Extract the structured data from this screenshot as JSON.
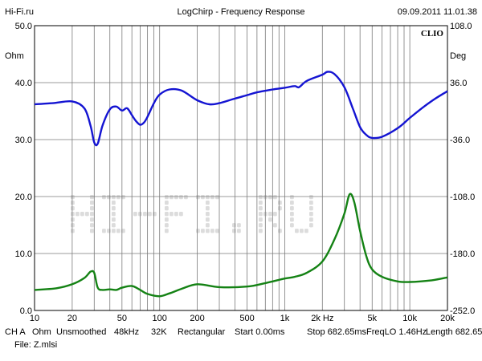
{
  "header": {
    "site": "Hi-Fi.ru",
    "title": "LogChirp - Frequency Response",
    "datetime": "09.09.2011 11.01.38"
  },
  "brand": "CLIO",
  "watermark": "HI-FI.RU",
  "footer": {
    "line1": [
      "CH A",
      "Ohm",
      "Unsmoothed",
      "48kHz",
      "32K",
      "Rectangular",
      "Start 0.00ms",
      "Stop 682.65ms",
      "FreqLO 1.46Hz",
      "Length 682.65ms"
    ],
    "line2": "File: Z.mlsi"
  },
  "chart_data": {
    "type": "line",
    "x_scale": "log",
    "xlim": [
      10,
      20000
    ],
    "x_ticks": [
      10,
      20,
      50,
      100,
      200,
      500,
      1000,
      2000,
      5000,
      10000,
      20000
    ],
    "x_tick_labels": [
      "10",
      "20",
      "50",
      "100",
      "200",
      "500",
      "1k",
      "2k Hz",
      "5k",
      "10k",
      "20k"
    ],
    "left_axis": {
      "unit": "Ohm",
      "ylim": [
        0,
        50
      ],
      "ticks": [
        0,
        10,
        20,
        30,
        40,
        50
      ],
      "tick_labels": [
        "0.0",
        "10.0",
        "20.0",
        "30.0",
        "40.0",
        "50.0"
      ]
    },
    "right_axis": {
      "unit": "Deg",
      "ylim": [
        -252,
        108
      ],
      "ticks": [
        -252,
        -180,
        -108,
        -36,
        36,
        108
      ],
      "tick_labels": [
        "-252.0",
        "-180.0",
        "-108.0",
        "-36.0",
        "36.0",
        "108.0"
      ]
    },
    "grid": true,
    "series": [
      {
        "axis": "left",
        "color": "#1414d2",
        "x": [
          10,
          14,
          20,
          25,
          28,
          30,
          32,
          35,
          40,
          45,
          50,
          55,
          60,
          65,
          70,
          75,
          80,
          90,
          100,
          120,
          150,
          200,
          250,
          300,
          400,
          500,
          600,
          800,
          1000,
          1200,
          1300,
          1500,
          2000,
          2200,
          2500,
          3000,
          3500,
          4000,
          4500,
          5000,
          6000,
          8000,
          10000,
          13000,
          16000,
          20000
        ],
        "y": [
          36.2,
          36.4,
          36.7,
          35.5,
          32.5,
          29.5,
          29.3,
          32.5,
          35.3,
          35.8,
          35.1,
          35.5,
          34.3,
          33.2,
          32.6,
          33.0,
          34.0,
          36.4,
          37.9,
          38.8,
          38.6,
          36.9,
          36.2,
          36.4,
          37.2,
          37.8,
          38.3,
          38.8,
          39.1,
          39.4,
          39.2,
          40.3,
          41.4,
          41.9,
          41.5,
          39.2,
          35.5,
          32.2,
          30.8,
          30.3,
          30.5,
          32.0,
          33.8,
          35.8,
          37.2,
          38.5
        ]
      },
      {
        "axis": "left",
        "color": "#148214",
        "x": [
          10,
          15,
          20,
          25,
          28,
          30,
          32,
          35,
          40,
          45,
          50,
          60,
          70,
          80,
          100,
          120,
          150,
          200,
          300,
          500,
          700,
          1000,
          1200,
          1500,
          2000,
          2500,
          3000,
          3300,
          3600,
          4000,
          4500,
          5000,
          6000,
          8000,
          10000,
          15000,
          20000
        ],
        "y": [
          3.6,
          3.9,
          4.6,
          5.7,
          6.8,
          6.6,
          4.0,
          3.6,
          3.7,
          3.6,
          4.0,
          4.3,
          3.6,
          2.9,
          2.5,
          3.0,
          3.8,
          4.6,
          4.1,
          4.2,
          4.8,
          5.6,
          5.9,
          6.6,
          8.6,
          12.5,
          17.0,
          20.4,
          19.0,
          14.0,
          9.5,
          7.2,
          5.9,
          5.1,
          5.0,
          5.3,
          5.8
        ]
      }
    ]
  }
}
